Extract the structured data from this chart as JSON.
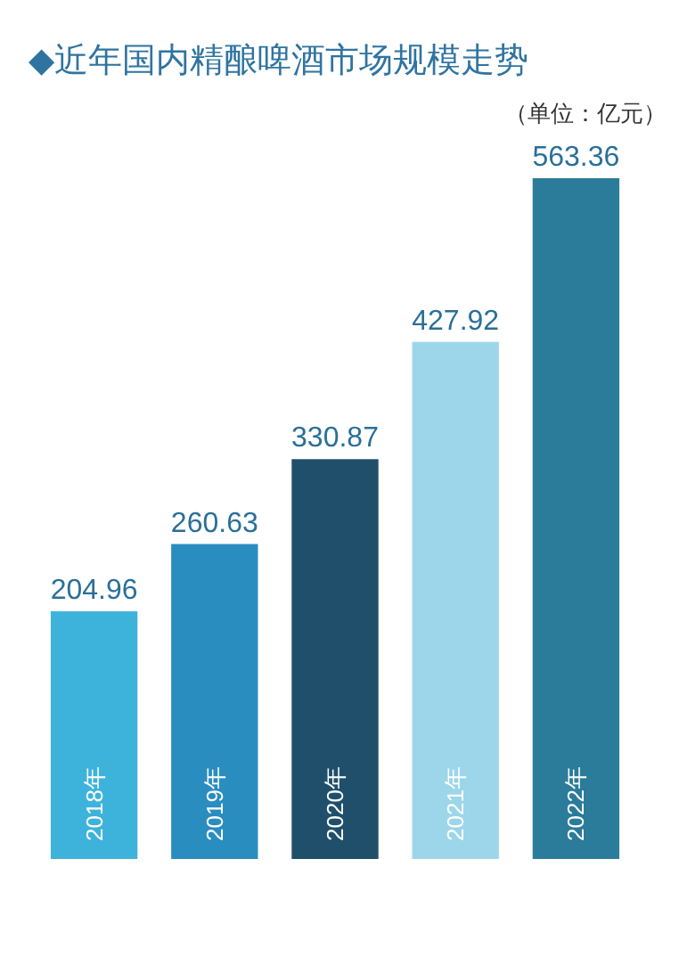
{
  "chart_data": {
    "type": "bar",
    "title": "◆近年国内精酿啤酒市场规模走势",
    "subtitle": "（单位：亿元）",
    "categories": [
      "2018年",
      "2019年",
      "2020年",
      "2021年",
      "2022年"
    ],
    "values": [
      204.96,
      260.63,
      330.87,
      427.92,
      563.36
    ],
    "colors": [
      "#3db3dc",
      "#2a8dc0",
      "#1f4f6b",
      "#9dd6ea",
      "#2b7b9b"
    ],
    "data_labels": true
  }
}
